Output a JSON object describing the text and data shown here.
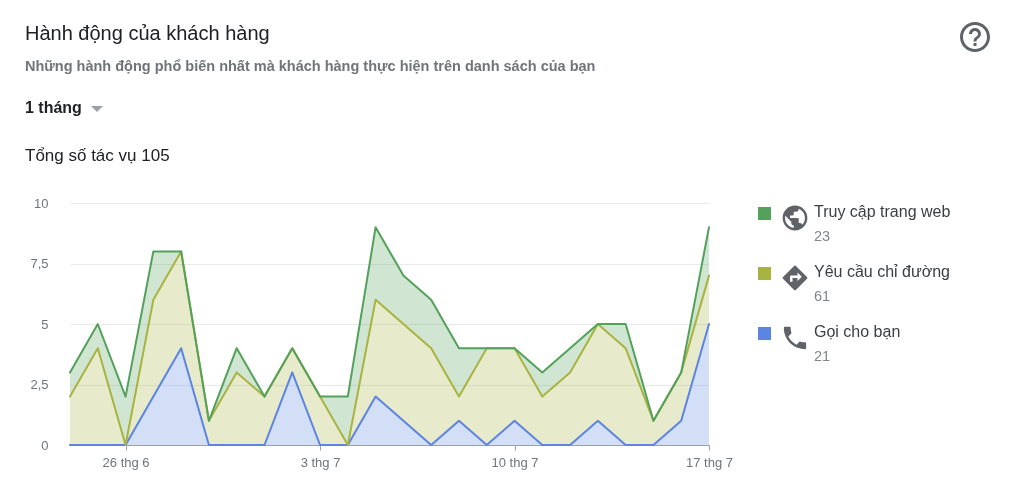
{
  "chart_data": {
    "type": "area",
    "stacked": true,
    "title": "Hành động của khách hàng",
    "subtitle": "Những hành động phổ biến nhất mà khách hàng thực hiện trên danh sách của bạn",
    "annotations": [
      "1 tháng",
      "Tổng số tác vụ 105",
      "23",
      "61",
      "21"
    ],
    "x": [
      "--06-24",
      "--06-25",
      "--06-26",
      "--06-27",
      "--06-28",
      "--06-29",
      "--06-30",
      "--07-01",
      "--07-02",
      "--07-03",
      "--07-04",
      "--07-05",
      "--07-06",
      "--07-07",
      "--07-08",
      "--07-09",
      "--07-10",
      "--07-11",
      "--07-12",
      "--07-13",
      "--07-14",
      "--07-15",
      "--07-16",
      "--07-17"
    ],
    "xlim": [
      "--06-24",
      "--07-17"
    ],
    "xticks": [
      {
        "value": "--06-26",
        "label": "26 thg 6"
      },
      {
        "value": "--07-03",
        "label": "3 thg 7"
      },
      {
        "value": "--07-10",
        "label": "10 thg 7"
      },
      {
        "value": "--07-17",
        "label": "17 thg 7"
      }
    ],
    "ylim": [
      0,
      10
    ],
    "yticks": [
      0,
      {
        "value": 2.5,
        "label": "2,5"
      },
      5,
      {
        "value": 7.5,
        "label": "7,5"
      },
      10
    ],
    "grid": "y",
    "legend": "right",
    "series": [
      {
        "name": "Gọi cho bạn",
        "color": "#5b84e3",
        "values": [
          0,
          0,
          0,
          2,
          4,
          0,
          0,
          0,
          3,
          0,
          0,
          2,
          1,
          0,
          1,
          0,
          1,
          0,
          0,
          1,
          0,
          0,
          1,
          5
        ]
      },
      {
        "name": "Yêu cầu chỉ đường",
        "color": "#a8b340",
        "values": [
          2,
          4,
          0,
          4,
          4,
          1,
          3,
          2,
          1,
          2,
          0,
          4,
          4,
          4,
          1,
          4,
          3,
          2,
          3,
          4,
          4,
          1,
          2,
          2
        ]
      },
      {
        "name": "Truy cập trang web",
        "color": "#53a15a",
        "values": [
          1,
          1,
          2,
          2,
          0,
          0,
          1,
          0,
          0,
          0,
          2,
          3,
          2,
          2,
          2,
          0,
          0,
          1,
          1,
          0,
          1,
          0,
          0,
          2
        ]
      }
    ]
  }
}
